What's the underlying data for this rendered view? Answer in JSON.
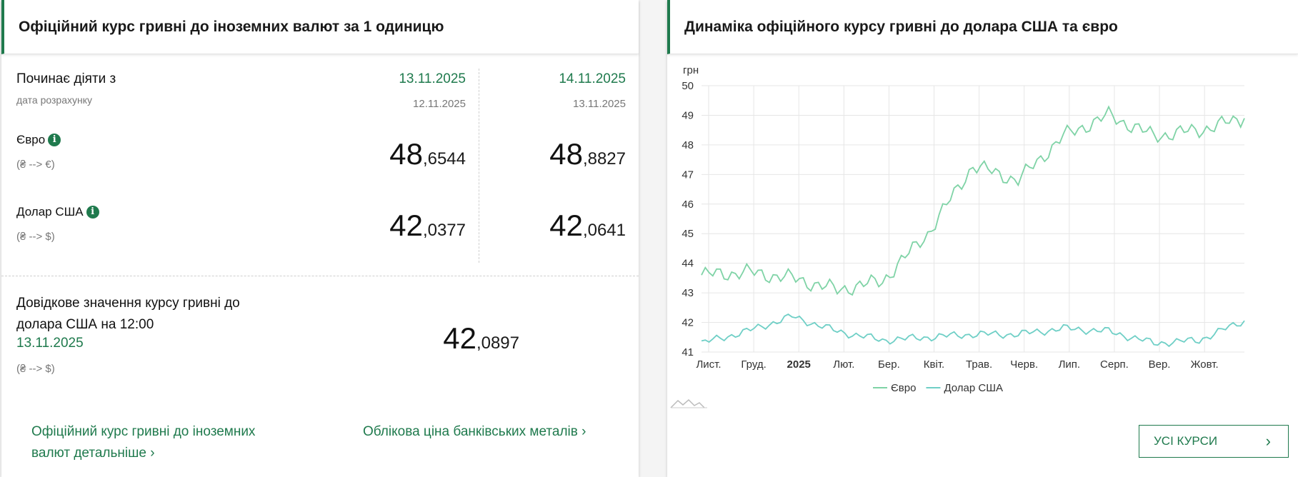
{
  "rates_panel": {
    "title": "Офіційний курс гривні до іноземних валют за 1 одиницю",
    "effective_label": "Починає діяти з",
    "calc_label": "дата розрахунку",
    "col1": {
      "date": "13.11.2025",
      "calc_date": "12.11.2025",
      "eur_int": "48",
      "eur_frac": ",6544",
      "usd_int": "42",
      "usd_frac": ",0377"
    },
    "col2": {
      "date": "14.11.2025",
      "calc_date": "13.11.2025",
      "eur_int": "48",
      "eur_frac": ",8827",
      "usd_int": "42",
      "usd_frac": ",0641"
    },
    "eur_label": "Євро",
    "eur_dir": "(₴ --> €)",
    "usd_label": "Долар США",
    "usd_dir": "(₴ --> $)",
    "info_glyph": "i",
    "ref_line1": "Довідкове значення курсу гривні до",
    "ref_line2": "долара США на 12:00",
    "ref_date": "13.11.2025",
    "ref_dir": "(₴ --> $)",
    "ref_int": "42",
    "ref_frac": ",0897",
    "link1_line1": "Офіційний курс гривні до іноземних",
    "link1_line2": "валют детальніше",
    "link2": "Облікова ціна банківських металів",
    "chevron": "›"
  },
  "chart_panel": {
    "title": "Динаміка офіційного курсу гривні до долара США та євро",
    "button_label": "УСІ КУРСИ",
    "button_chevron": "›"
  },
  "chart_data": {
    "type": "line",
    "ylabel": "грн",
    "ylim": [
      41,
      50
    ],
    "yticks": [
      41,
      42,
      43,
      44,
      45,
      46,
      47,
      48,
      49,
      50
    ],
    "x_ticks": [
      "Лист.",
      "Груд.",
      "2025",
      "Лют.",
      "Бер.",
      "Квіт.",
      "Трав.",
      "Черв.",
      "Лип.",
      "Серп.",
      "Вер.",
      "Жовт."
    ],
    "x": [
      "2024-11",
      "2024-12",
      "2025-01",
      "2025-02",
      "2025-03",
      "2025-04",
      "2025-05",
      "2025-06",
      "2025-07",
      "2025-08",
      "2025-09",
      "2025-10",
      "2025-11"
    ],
    "series": [
      {
        "name": "Євро",
        "color": "#7fd3a6",
        "values": [
          43.6,
          43.7,
          43.5,
          43.1,
          43.4,
          45.0,
          47.3,
          46.8,
          48.3,
          49.0,
          48.3,
          48.5,
          48.9
        ]
      },
      {
        "name": "Долар США",
        "color": "#6fcfc6",
        "values": [
          41.3,
          41.7,
          42.2,
          41.7,
          41.4,
          41.5,
          41.6,
          41.6,
          41.8,
          41.7,
          41.3,
          41.4,
          42.06
        ]
      }
    ],
    "grid": true,
    "legend": "bottom"
  }
}
